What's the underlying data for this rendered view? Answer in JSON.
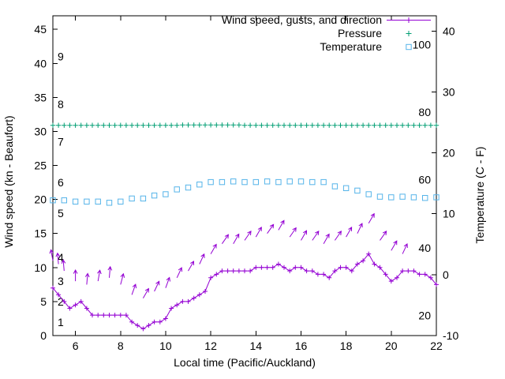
{
  "page": {
    "background": "#ffffff"
  },
  "chart_data": {
    "type": "line",
    "title": "",
    "xlabel": "Local time (Pacific/Auckland)",
    "ylabel_left": "Wind speed (kn - Beaufort)",
    "ylabel_right": "Temperature (C - F)",
    "grid": false,
    "legend_position": "top-right-inside",
    "x_range": [
      5,
      22
    ],
    "x_ticks": [
      6,
      8,
      10,
      12,
      14,
      16,
      18,
      20,
      22
    ],
    "y_left_range": [
      0,
      47
    ],
    "y_left_ticks": [
      0,
      5,
      10,
      15,
      20,
      25,
      30,
      35,
      40,
      45
    ],
    "y_right_range": [
      -10,
      42.5
    ],
    "y_right_ticks": [
      -10,
      0,
      10,
      20,
      30,
      40
    ],
    "beaufort_labels": [
      {
        "label": "1",
        "kn": 2
      },
      {
        "label": "2",
        "kn": 5
      },
      {
        "label": "3",
        "kn": 8
      },
      {
        "label": "4",
        "kn": 11.5
      },
      {
        "label": "5",
        "kn": 18
      },
      {
        "label": "6",
        "kn": 22.5
      },
      {
        "label": "7",
        "kn": 28.5
      },
      {
        "label": "8",
        "kn": 34
      },
      {
        "label": "9",
        "kn": 41
      }
    ],
    "fahrenheit_labels": [
      {
        "label": "20",
        "c": -6.7
      },
      {
        "label": "40",
        "c": 4.4
      },
      {
        "label": "60",
        "c": 15.6
      },
      {
        "label": "80",
        "c": 26.7
      },
      {
        "label": "100",
        "c": 37.8
      }
    ],
    "legend": [
      {
        "label": "Wind speed, gusts, and direction",
        "color": "#9400d3",
        "marker": "line-plus"
      },
      {
        "label": "Pressure",
        "color": "#009e73",
        "marker": "plus"
      },
      {
        "label": "Temperature",
        "color": "#56b4e9",
        "marker": "square"
      }
    ],
    "colors": {
      "wind": "#9400d3",
      "pressure": "#009e73",
      "temperature": "#56b4e9",
      "axis": "#000000",
      "background": "#ffffff"
    },
    "series": {
      "wind": {
        "name": "Wind speed (kn)",
        "axis": "left",
        "color": "#9400d3",
        "x": [
          5,
          5.25,
          5.5,
          5.75,
          6,
          6.25,
          6.5,
          6.75,
          7,
          7.25,
          7.5,
          7.75,
          8,
          8.25,
          8.5,
          8.75,
          9,
          9.25,
          9.5,
          9.75,
          10,
          10.25,
          10.5,
          10.75,
          11,
          11.25,
          11.5,
          11.75,
          12,
          12.25,
          12.5,
          12.75,
          13,
          13.25,
          13.5,
          13.75,
          14,
          14.25,
          14.5,
          14.75,
          15,
          15.25,
          15.5,
          15.75,
          16,
          16.25,
          16.5,
          16.75,
          17,
          17.25,
          17.5,
          17.75,
          18,
          18.25,
          18.5,
          18.75,
          19,
          19.25,
          19.5,
          19.75,
          20,
          20.25,
          20.5,
          20.75,
          21,
          21.25,
          21.5,
          21.75,
          22
        ],
        "y": [
          7,
          6,
          5,
          4,
          4.5,
          5,
          4,
          3,
          3,
          3,
          3,
          3,
          3,
          3,
          2,
          1.5,
          1,
          1.5,
          2,
          2,
          2.5,
          4,
          4.5,
          5,
          5,
          5.5,
          6,
          6.5,
          8.5,
          9,
          9.5,
          9.5,
          9.5,
          9.5,
          9.5,
          9.5,
          10,
          10,
          10,
          10,
          10.5,
          10,
          9.5,
          10,
          10,
          9.5,
          9.5,
          9,
          9,
          8.5,
          9.5,
          10,
          10,
          9.5,
          10.5,
          11,
          12,
          10.5,
          10,
          9,
          8,
          8.5,
          9.5,
          9.5,
          9.5,
          9,
          9,
          8.5,
          7.5
        ]
      },
      "pressure": {
        "name": "Pressure (inHg, plotted on left scale)",
        "axis": "left",
        "color": "#009e73",
        "x": [
          5,
          5.25,
          5.5,
          5.75,
          6,
          6.25,
          6.5,
          6.75,
          7,
          7.25,
          7.5,
          7.75,
          8,
          8.25,
          8.5,
          8.75,
          9,
          9.25,
          9.5,
          9.75,
          10,
          10.25,
          10.5,
          10.75,
          11,
          11.25,
          11.5,
          11.75,
          12,
          12.25,
          12.5,
          12.75,
          13,
          13.25,
          13.5,
          13.75,
          14,
          14.25,
          14.5,
          14.75,
          15,
          15.25,
          15.5,
          15.75,
          16,
          16.25,
          16.5,
          16.75,
          17,
          17.25,
          17.5,
          17.75,
          18,
          18.25,
          18.5,
          18.75,
          19,
          19.25,
          19.5,
          19.75,
          20,
          20.25,
          20.5,
          20.75,
          21,
          21.25,
          21.5,
          21.75,
          22
        ],
        "y": [
          30.9,
          30.9,
          30.9,
          30.9,
          30.9,
          30.9,
          30.9,
          30.9,
          30.9,
          30.9,
          30.9,
          30.9,
          30.9,
          30.9,
          30.9,
          30.9,
          30.9,
          30.9,
          30.9,
          30.9,
          30.9,
          30.9,
          30.9,
          30.95,
          30.95,
          30.95,
          30.95,
          30.95,
          30.95,
          30.95,
          30.95,
          30.95,
          30.95,
          30.95,
          30.9,
          30.9,
          30.9,
          30.9,
          30.9,
          30.9,
          30.9,
          30.9,
          30.9,
          30.9,
          30.9,
          30.9,
          30.9,
          30.9,
          30.9,
          30.9,
          30.9,
          30.9,
          30.9,
          30.9,
          30.9,
          30.9,
          30.9,
          30.9,
          30.9,
          30.9,
          30.9,
          30.9,
          30.9,
          30.9,
          30.9,
          30.9,
          30.9,
          30.9,
          30.9
        ]
      },
      "temperature": {
        "name": "Temperature (C)",
        "axis": "right",
        "color": "#56b4e9",
        "x": [
          5,
          5.5,
          6,
          6.5,
          7,
          7.5,
          8,
          8.5,
          9,
          9.5,
          10,
          10.5,
          11,
          11.5,
          12,
          12.5,
          13,
          13.5,
          14,
          14.5,
          15,
          15.5,
          16,
          16.5,
          17,
          17.5,
          18,
          18.5,
          19,
          19.5,
          20,
          20.5,
          21,
          21.5,
          22
        ],
        "y": [
          12.2,
          12.2,
          12,
          12,
          12,
          11.8,
          12,
          12.5,
          12.5,
          13,
          13.2,
          14,
          14.3,
          14.8,
          15.2,
          15.2,
          15.3,
          15.2,
          15.2,
          15.3,
          15.2,
          15.3,
          15.3,
          15.2,
          15.2,
          14.5,
          14.2,
          13.8,
          13.2,
          12.8,
          12.7,
          12.8,
          12.7,
          12.6,
          12.7
        ]
      },
      "wind_arrows": {
        "name": "Gusts and wind direction (time, gust kn, direction deg from up)",
        "color": "#9400d3",
        "points": [
          [
            5,
            11,
            -10
          ],
          [
            5.25,
            10.5,
            -5
          ],
          [
            5.5,
            9.5,
            -5
          ],
          [
            6,
            8,
            0
          ],
          [
            6.5,
            7.5,
            5
          ],
          [
            7,
            8,
            10
          ],
          [
            7.5,
            8.5,
            5
          ],
          [
            8,
            7.5,
            15
          ],
          [
            8.5,
            6,
            20
          ],
          [
            9,
            5.5,
            30
          ],
          [
            9.5,
            6.5,
            25
          ],
          [
            10,
            7,
            20
          ],
          [
            10.5,
            8.5,
            25
          ],
          [
            11,
            9.5,
            30
          ],
          [
            11.5,
            10.5,
            25
          ],
          [
            12,
            12,
            30
          ],
          [
            12.5,
            13.5,
            35
          ],
          [
            13,
            13.5,
            30
          ],
          [
            13.5,
            14,
            35
          ],
          [
            14,
            14.5,
            30
          ],
          [
            14.5,
            15,
            35
          ],
          [
            15,
            15.5,
            30
          ],
          [
            15.5,
            14.5,
            35
          ],
          [
            16,
            14,
            30
          ],
          [
            16.5,
            14,
            35
          ],
          [
            17,
            13.5,
            30
          ],
          [
            17.5,
            14,
            35
          ],
          [
            18,
            14.5,
            30
          ],
          [
            18.5,
            15,
            25
          ],
          [
            19,
            16.5,
            30
          ],
          [
            19.5,
            14,
            35
          ],
          [
            20,
            12.5,
            30
          ],
          [
            20.5,
            12,
            25
          ]
        ]
      }
    }
  }
}
